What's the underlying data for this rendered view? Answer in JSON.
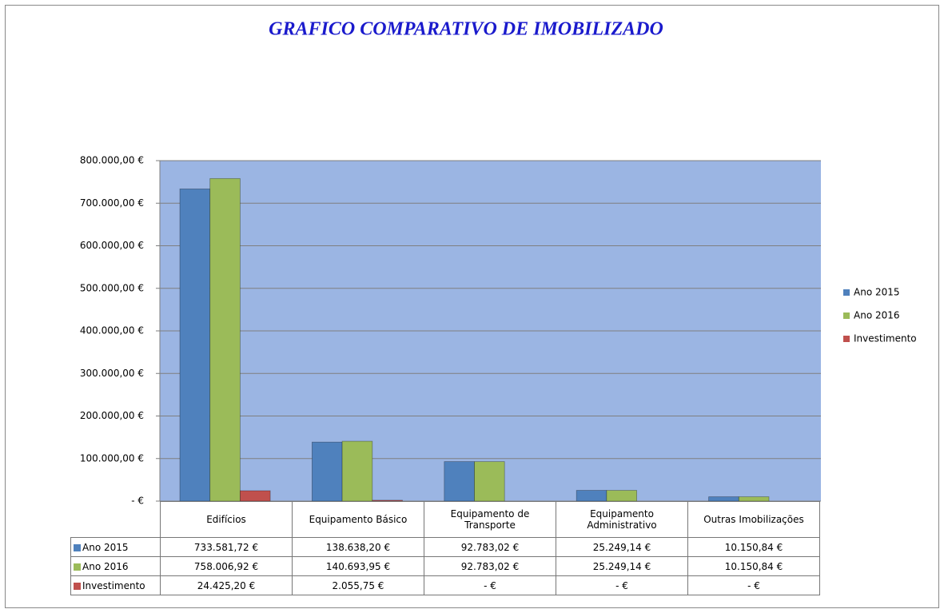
{
  "chart_data": {
    "type": "bar",
    "title": "GRAFICO COMPARATIVO DE IMOBILIZADO",
    "categories": [
      "Edifícios",
      "Equipamento Básico",
      "Equipamento de Transporte",
      "Equipamento Administrativo",
      "Outras Imobilizações"
    ],
    "series": [
      {
        "name": "Ano 2015",
        "color": "#4f81bd",
        "values": [
          733581.72,
          138638.2,
          92783.02,
          25249.14,
          10150.84
        ],
        "value_labels": [
          "733.581,72 €",
          "138.638,20 €",
          "92.783,02 €",
          "25.249,14 €",
          "10.150,84 €"
        ]
      },
      {
        "name": "Ano 2016",
        "color": "#9bbb59",
        "values": [
          758006.92,
          140693.95,
          92783.02,
          25249.14,
          10150.84
        ],
        "value_labels": [
          "758.006,92 €",
          "140.693,95 €",
          "92.783,02 €",
          "25.249,14 €",
          "10.150,84 €"
        ]
      },
      {
        "name": "Investimento",
        "color": "#c0504d",
        "values": [
          24425.2,
          2055.75,
          0,
          0,
          0
        ],
        "value_labels": [
          "24.425,20 €",
          "2.055,75 €",
          "-   €",
          "-   €",
          "-   €"
        ]
      }
    ],
    "ylim": [
      0,
      800000
    ],
    "yticks": [
      {
        "value": 0,
        "label": "-   €"
      },
      {
        "value": 100000,
        "label": "100.000,00 €"
      },
      {
        "value": 200000,
        "label": "200.000,00 €"
      },
      {
        "value": 300000,
        "label": "300.000,00 €"
      },
      {
        "value": 400000,
        "label": "400.000,00 €"
      },
      {
        "value": 500000,
        "label": "500.000,00 €"
      },
      {
        "value": 600000,
        "label": "600.000,00 €"
      },
      {
        "value": 700000,
        "label": "700.000,00 €"
      },
      {
        "value": 800000,
        "label": "800.000,00 €"
      }
    ],
    "grid": true,
    "legend": "right"
  }
}
